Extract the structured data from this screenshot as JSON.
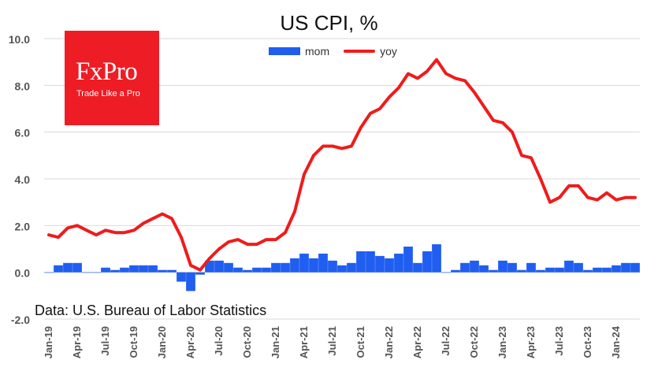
{
  "chart_data": {
    "type": "bar+line",
    "title": "US CPI, %",
    "ylim": [
      -2.0,
      10.0
    ],
    "yticks": [
      "-2.0",
      "0.0",
      "2.0",
      "4.0",
      "6.0",
      "8.0",
      "10.0"
    ],
    "x_tick_labels": [
      "Jan-19",
      "Apr-19",
      "Jul-19",
      "Oct-19",
      "Jan-20",
      "Apr-20",
      "Jul-20",
      "Oct-20",
      "Jan-21",
      "Apr-21",
      "Jul-21",
      "Oct-21",
      "Jan-22",
      "Apr-22",
      "Jul-22",
      "Oct-22",
      "Jan-23",
      "Apr-23",
      "Jul-23",
      "Oct-23",
      "Jan-24"
    ],
    "categories": [
      "Jan-19",
      "Feb-19",
      "Mar-19",
      "Apr-19",
      "May-19",
      "Jun-19",
      "Jul-19",
      "Aug-19",
      "Sep-19",
      "Oct-19",
      "Nov-19",
      "Dec-19",
      "Jan-20",
      "Feb-20",
      "Mar-20",
      "Apr-20",
      "May-20",
      "Jun-20",
      "Jul-20",
      "Aug-20",
      "Sep-20",
      "Oct-20",
      "Nov-20",
      "Dec-20",
      "Jan-21",
      "Feb-21",
      "Mar-21",
      "Apr-21",
      "May-21",
      "Jun-21",
      "Jul-21",
      "Aug-21",
      "Sep-21",
      "Oct-21",
      "Nov-21",
      "Dec-21",
      "Jan-22",
      "Feb-22",
      "Mar-22",
      "Apr-22",
      "May-22",
      "Jun-22",
      "Jul-22",
      "Aug-22",
      "Sep-22",
      "Oct-22",
      "Nov-22",
      "Dec-22",
      "Jan-23",
      "Feb-23",
      "Mar-23",
      "Apr-23",
      "May-23",
      "Jun-23",
      "Jul-23",
      "Aug-23",
      "Sep-23",
      "Oct-23",
      "Nov-23",
      "Dec-23",
      "Jan-24",
      "Feb-24",
      "Mar-24"
    ],
    "series": [
      {
        "name": "mom",
        "kind": "bar",
        "color": "#1f5ef0",
        "values": [
          0.0,
          0.3,
          0.4,
          0.4,
          0.0,
          0.0,
          0.2,
          0.1,
          0.2,
          0.3,
          0.3,
          0.3,
          0.1,
          0.1,
          -0.4,
          -0.8,
          -0.1,
          0.5,
          0.5,
          0.4,
          0.2,
          0.1,
          0.2,
          0.2,
          0.4,
          0.4,
          0.6,
          0.8,
          0.6,
          0.8,
          0.5,
          0.3,
          0.4,
          0.9,
          0.9,
          0.7,
          0.6,
          0.8,
          1.1,
          0.4,
          0.9,
          1.2,
          0.0,
          0.1,
          0.4,
          0.5,
          0.3,
          0.1,
          0.5,
          0.4,
          0.1,
          0.4,
          0.1,
          0.2,
          0.2,
          0.5,
          0.4,
          0.1,
          0.2,
          0.2,
          0.3,
          0.4,
          0.4
        ]
      },
      {
        "name": "yoy",
        "kind": "line",
        "color": "#ee1c1c",
        "values": [
          1.6,
          1.5,
          1.9,
          2.0,
          1.8,
          1.6,
          1.8,
          1.7,
          1.7,
          1.8,
          2.1,
          2.3,
          2.5,
          2.3,
          1.5,
          0.3,
          0.1,
          0.6,
          1.0,
          1.3,
          1.4,
          1.2,
          1.2,
          1.4,
          1.4,
          1.7,
          2.6,
          4.2,
          5.0,
          5.4,
          5.4,
          5.3,
          5.4,
          6.2,
          6.8,
          7.0,
          7.5,
          7.9,
          8.5,
          8.3,
          8.6,
          9.1,
          8.5,
          8.3,
          8.2,
          7.7,
          7.1,
          6.5,
          6.4,
          6.0,
          5.0,
          4.9,
          4.0,
          3.0,
          3.2,
          3.7,
          3.7,
          3.2,
          3.1,
          3.4,
          3.1,
          3.2,
          3.2
        ]
      }
    ],
    "legend_position": "top-center",
    "grid": "horizontal"
  },
  "logo": {
    "word": "FxPro",
    "tagline": "Trade Like a Pro",
    "bg_color": "#ee1c25"
  },
  "source_note": "Data: U.S. Bureau of Labor Statistics"
}
